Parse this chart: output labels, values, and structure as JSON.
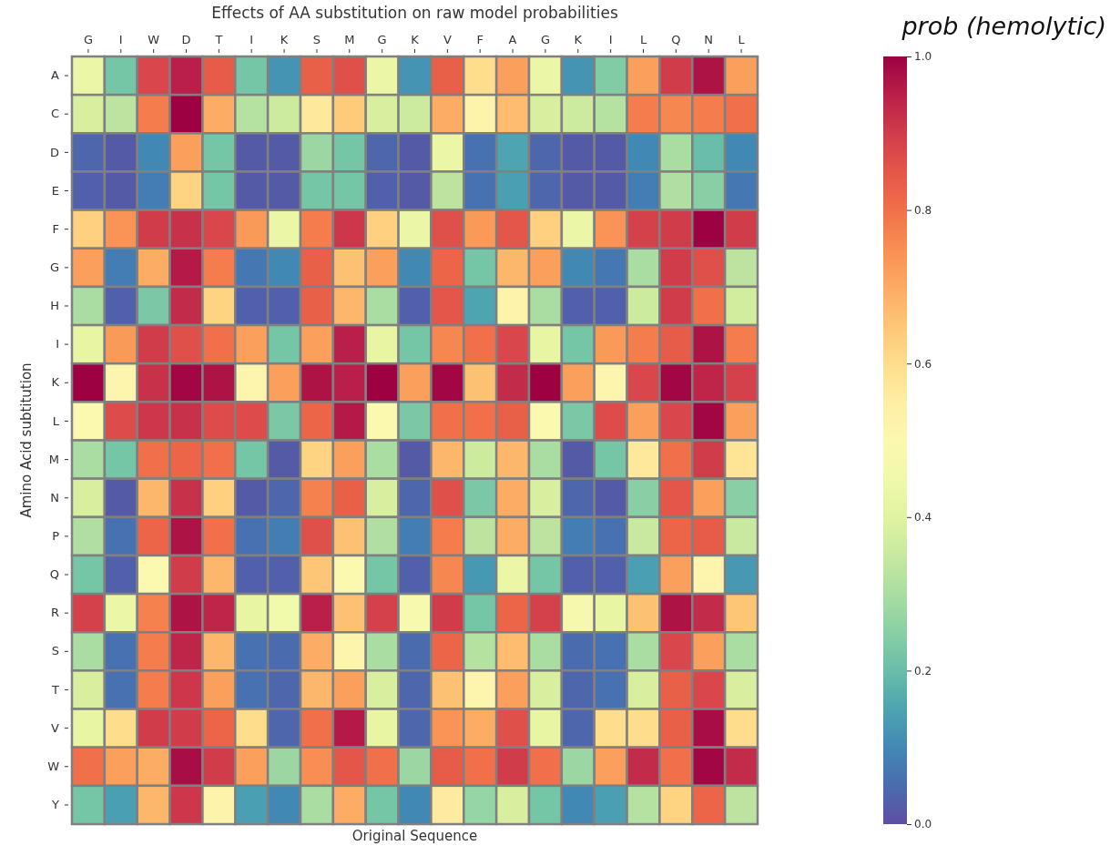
{
  "chart_data": {
    "type": "heatmap",
    "title": "Effects of AA substitution on raw model probabilities",
    "xlabel": "Original Sequence",
    "ylabel": "Amino Acid subtitution",
    "clabel": "prob (hemolytic)",
    "categories": [
      "G",
      "I",
      "W",
      "D",
      "T",
      "I",
      "K",
      "S",
      "M",
      "G",
      "K",
      "V",
      "F",
      "A",
      "G",
      "K",
      "I",
      "L",
      "Q",
      "N",
      "L"
    ],
    "y_categories": [
      "A",
      "C",
      "D",
      "E",
      "F",
      "G",
      "H",
      "I",
      "K",
      "L",
      "M",
      "N",
      "P",
      "Q",
      "R",
      "S",
      "T",
      "V",
      "W",
      "Y"
    ],
    "cells": [
      [
        0.43,
        0.22,
        0.88,
        0.95,
        0.84,
        0.22,
        0.12,
        0.83,
        0.86,
        0.43,
        0.12,
        0.83,
        0.6,
        0.72,
        0.43,
        0.12,
        0.24,
        0.72,
        0.9,
        0.97,
        0.72
      ],
      [
        0.38,
        0.33,
        0.78,
        1.0,
        0.7,
        0.32,
        0.36,
        0.57,
        0.64,
        0.38,
        0.36,
        0.7,
        0.53,
        0.67,
        0.38,
        0.36,
        0.32,
        0.78,
        0.76,
        0.78,
        0.8
      ],
      [
        0.04,
        0.02,
        0.1,
        0.72,
        0.22,
        0.02,
        0.02,
        0.28,
        0.22,
        0.04,
        0.02,
        0.43,
        0.06,
        0.15,
        0.04,
        0.02,
        0.02,
        0.1,
        0.3,
        0.2,
        0.1
      ],
      [
        0.03,
        0.02,
        0.08,
        0.62,
        0.22,
        0.02,
        0.02,
        0.22,
        0.22,
        0.03,
        0.02,
        0.33,
        0.06,
        0.14,
        0.04,
        0.02,
        0.02,
        0.08,
        0.31,
        0.25,
        0.07
      ],
      [
        0.63,
        0.74,
        0.9,
        0.92,
        0.88,
        0.73,
        0.43,
        0.78,
        0.91,
        0.63,
        0.43,
        0.86,
        0.73,
        0.85,
        0.63,
        0.43,
        0.74,
        0.89,
        0.9,
        1.0,
        0.9
      ],
      [
        0.72,
        0.08,
        0.7,
        0.96,
        0.78,
        0.07,
        0.1,
        0.83,
        0.66,
        0.72,
        0.1,
        0.82,
        0.22,
        0.68,
        0.72,
        0.1,
        0.07,
        0.3,
        0.9,
        0.86,
        0.33
      ],
      [
        0.3,
        0.03,
        0.23,
        0.93,
        0.62,
        0.03,
        0.03,
        0.83,
        0.68,
        0.3,
        0.03,
        0.85,
        0.15,
        0.53,
        0.3,
        0.03,
        0.03,
        0.36,
        0.9,
        0.8,
        0.37
      ],
      [
        0.42,
        0.73,
        0.9,
        0.86,
        0.8,
        0.72,
        0.22,
        0.72,
        0.95,
        0.42,
        0.22,
        0.76,
        0.8,
        0.88,
        0.42,
        0.22,
        0.73,
        0.78,
        0.84,
        0.97,
        0.78
      ],
      [
        1.0,
        0.52,
        0.92,
        0.99,
        0.97,
        0.52,
        0.72,
        0.97,
        0.95,
        1.0,
        0.72,
        0.99,
        0.66,
        0.93,
        1.0,
        0.72,
        0.52,
        0.88,
        0.99,
        0.94,
        0.89
      ],
      [
        0.5,
        0.87,
        0.91,
        0.92,
        0.87,
        0.87,
        0.23,
        0.82,
        0.96,
        0.5,
        0.23,
        0.8,
        0.8,
        0.83,
        0.5,
        0.23,
        0.87,
        0.72,
        0.88,
        0.99,
        0.72
      ],
      [
        0.3,
        0.22,
        0.8,
        0.82,
        0.8,
        0.22,
        0.02,
        0.62,
        0.72,
        0.3,
        0.02,
        0.68,
        0.36,
        0.68,
        0.3,
        0.02,
        0.22,
        0.57,
        0.8,
        0.9,
        0.58
      ],
      [
        0.38,
        0.02,
        0.68,
        0.92,
        0.63,
        0.02,
        0.04,
        0.77,
        0.83,
        0.38,
        0.04,
        0.86,
        0.23,
        0.7,
        0.38,
        0.04,
        0.02,
        0.25,
        0.85,
        0.72,
        0.25
      ],
      [
        0.31,
        0.06,
        0.82,
        0.97,
        0.8,
        0.06,
        0.08,
        0.86,
        0.66,
        0.31,
        0.08,
        0.78,
        0.33,
        0.7,
        0.33,
        0.08,
        0.06,
        0.35,
        0.82,
        0.84,
        0.35
      ],
      [
        0.22,
        0.03,
        0.5,
        0.9,
        0.68,
        0.03,
        0.03,
        0.65,
        0.5,
        0.22,
        0.03,
        0.76,
        0.13,
        0.43,
        0.22,
        0.03,
        0.03,
        0.14,
        0.72,
        0.52,
        0.13
      ],
      [
        0.89,
        0.43,
        0.77,
        0.97,
        0.94,
        0.42,
        0.45,
        0.95,
        0.66,
        0.89,
        0.47,
        0.9,
        0.22,
        0.82,
        0.89,
        0.46,
        0.42,
        0.66,
        0.97,
        0.93,
        0.65
      ],
      [
        0.3,
        0.06,
        0.78,
        0.94,
        0.68,
        0.06,
        0.05,
        0.7,
        0.52,
        0.3,
        0.05,
        0.82,
        0.32,
        0.67,
        0.3,
        0.05,
        0.06,
        0.3,
        0.88,
        0.72,
        0.3
      ],
      [
        0.38,
        0.06,
        0.78,
        0.91,
        0.72,
        0.06,
        0.04,
        0.68,
        0.72,
        0.38,
        0.04,
        0.66,
        0.52,
        0.72,
        0.38,
        0.04,
        0.06,
        0.38,
        0.83,
        0.88,
        0.38
      ],
      [
        0.42,
        0.6,
        0.9,
        0.9,
        0.82,
        0.6,
        0.04,
        0.8,
        0.96,
        0.42,
        0.04,
        0.74,
        0.7,
        0.86,
        0.42,
        0.04,
        0.6,
        0.6,
        0.83,
        0.98,
        0.6
      ],
      [
        0.8,
        0.72,
        0.7,
        0.98,
        0.9,
        0.72,
        0.28,
        0.75,
        0.85,
        0.8,
        0.28,
        0.84,
        0.8,
        0.9,
        0.8,
        0.28,
        0.72,
        0.93,
        0.8,
        0.99,
        0.93
      ],
      [
        0.22,
        0.14,
        0.68,
        0.91,
        0.53,
        0.14,
        0.1,
        0.3,
        0.7,
        0.22,
        0.1,
        0.56,
        0.27,
        0.38,
        0.22,
        0.1,
        0.14,
        0.32,
        0.62,
        0.82,
        0.33
      ]
    ],
    "clim": [
      0,
      1
    ],
    "cticks": [
      {
        "value": 0,
        "label": "0.0"
      },
      0.2,
      0.4,
      0.6,
      0.8,
      {
        "value": 1,
        "label": "1.0"
      }
    ]
  }
}
